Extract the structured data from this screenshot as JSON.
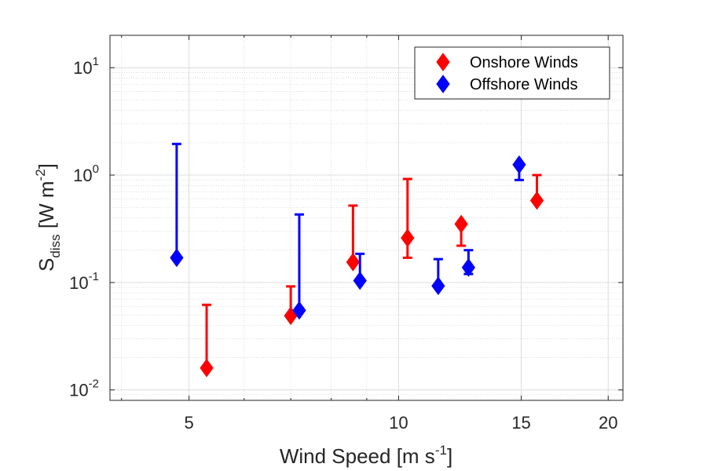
{
  "chart_data": {
    "type": "scatter",
    "xlabel": "Wind Speed [m s-1]",
    "ylabel": "Sdiss [W m-2]",
    "x_scale": "log",
    "y_scale": "log",
    "xlim": [
      3.85,
      21
    ],
    "ylim": [
      0.008,
      20
    ],
    "x_ticks": [
      5,
      10,
      15,
      20
    ],
    "x_tick_labels": [
      "5",
      "10",
      "15",
      "20"
    ],
    "y_ticks": [
      0.01,
      0.1,
      1,
      10
    ],
    "y_tick_labels": [
      {
        "base": "10",
        "exp": "-2"
      },
      {
        "base": "10",
        "exp": "-1"
      },
      {
        "base": "10",
        "exp": "0"
      },
      {
        "base": "10",
        "exp": "1"
      }
    ],
    "grid": true,
    "minor_grid": true,
    "legend_position": "top-right",
    "series": [
      {
        "name": "Onshore Winds",
        "color": "#ff0000",
        "marker": "diamond",
        "points": [
          {
            "x": 5.3,
            "y": 0.016,
            "err_low": 0.016,
            "err_high": 0.062
          },
          {
            "x": 7.0,
            "y": 0.049,
            "err_low": 0.049,
            "err_high": 0.092
          },
          {
            "x": 8.6,
            "y": 0.155,
            "err_low": 0.155,
            "err_high": 0.52
          },
          {
            "x": 10.3,
            "y": 0.26,
            "err_low": 0.17,
            "err_high": 0.92
          },
          {
            "x": 12.3,
            "y": 0.35,
            "err_low": 0.22,
            "err_high": 0.35
          },
          {
            "x": 15.8,
            "y": 0.58,
            "err_low": 0.58,
            "err_high": 1.0
          }
        ]
      },
      {
        "name": "Offshore Winds",
        "color": "#0000ff",
        "marker": "diamond",
        "points": [
          {
            "x": 4.8,
            "y": 0.17,
            "err_low": 0.17,
            "err_high": 1.95
          },
          {
            "x": 7.2,
            "y": 0.055,
            "err_low": 0.055,
            "err_high": 0.43
          },
          {
            "x": 8.8,
            "y": 0.104,
            "err_low": 0.104,
            "err_high": 0.185
          },
          {
            "x": 11.4,
            "y": 0.093,
            "err_low": 0.093,
            "err_high": 0.165
          },
          {
            "x": 12.6,
            "y": 0.138,
            "err_low": 0.12,
            "err_high": 0.2
          },
          {
            "x": 14.9,
            "y": 1.25,
            "err_low": 0.9,
            "err_high": 1.25
          }
        ]
      }
    ]
  }
}
